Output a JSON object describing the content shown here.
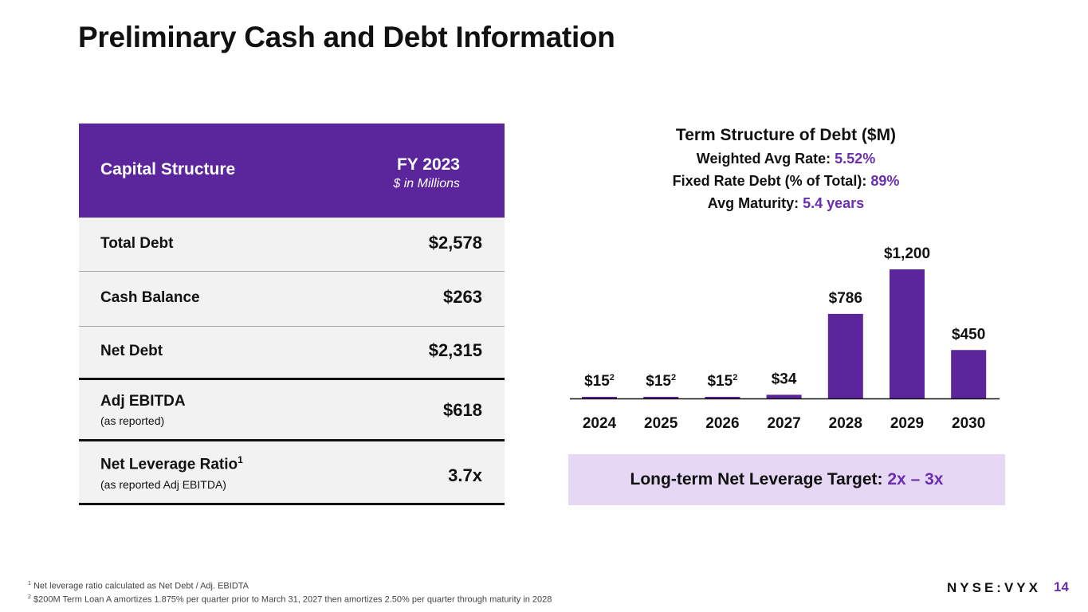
{
  "title": "Preliminary Cash and Debt Information",
  "colors": {
    "accent": "#5b259c",
    "accent_text": "#6a2fb0",
    "row_bg": "#f2f2f2",
    "target_box": "#e6d8f4"
  },
  "table": {
    "header_label": "Capital Structure",
    "header_year": "FY 2023",
    "header_unit": "$ in Millions",
    "rows": [
      {
        "label": "Total Debt",
        "value": "$2,578"
      },
      {
        "label": "Cash Balance",
        "value": "$263"
      },
      {
        "label": "Net Debt",
        "value": "$2,315"
      },
      {
        "label": "Adj EBITDA",
        "sublabel": "(as reported)",
        "value": "$618"
      },
      {
        "label": "Net Leverage Ratio",
        "sup": "1",
        "sublabel": "(as reported Adj EBITDA)",
        "value": "3.7x"
      }
    ]
  },
  "chart_header": {
    "title": "Term Structure of Debt ($M)",
    "rate_label": "Weighted Avg Rate: ",
    "rate_value": "5.52%",
    "fixed_label": "Fixed Rate Debt (% of Total): ",
    "fixed_value": "89%",
    "maturity_label": "Avg Maturity: ",
    "maturity_value": "5.4 years"
  },
  "chart_data": {
    "type": "bar",
    "title": "Term Structure of Debt ($M)",
    "categories": [
      "2024",
      "2025",
      "2026",
      "2027",
      "2028",
      "2029",
      "2030"
    ],
    "values": [
      15,
      15,
      15,
      34,
      786,
      1200,
      450
    ],
    "data_labels": [
      "$15",
      "$15",
      "$15",
      "$34",
      "$786",
      "$1,200",
      "$450"
    ],
    "label_superscripts": [
      "2",
      "2",
      "2",
      "",
      "",
      "",
      ""
    ],
    "xlabel": "",
    "ylabel": "$M",
    "ylim": [
      0,
      1200
    ],
    "grid": false,
    "legend": "none"
  },
  "leverage_target": {
    "label": "Long-term Net Leverage Target: ",
    "value": "2x – 3x"
  },
  "footnotes": [
    {
      "num": "1",
      "text": "Net leverage ratio calculated as Net Debt / Adj. EBIDTA"
    },
    {
      "num": "2",
      "text": "$200M Term Loan A amortizes 1.875% per quarter prior to March 31, 2027 then amortizes 2.50% per quarter through maturity in 2028"
    }
  ],
  "footer": {
    "logo": "NYSE:VYX",
    "page": "14"
  }
}
